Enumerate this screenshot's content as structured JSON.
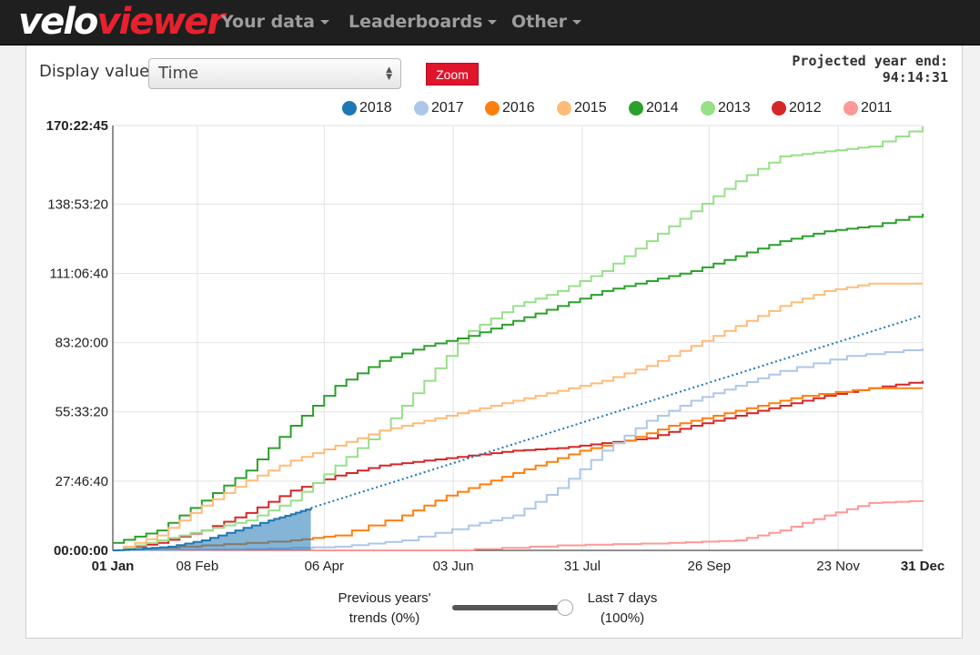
{
  "nav": {
    "logo_part1": "velo",
    "logo_part2": "viewer",
    "items": [
      {
        "label": "Your data"
      },
      {
        "label": "Leaderboards"
      },
      {
        "label": "Other"
      }
    ]
  },
  "controls": {
    "display_label": "Display value:",
    "display_value": "Time",
    "zoom_label": "Zoom",
    "projected_label": "Projected year end:",
    "projected_value": "94:14:31"
  },
  "slider": {
    "left_label_1": "Previous years'",
    "left_label_2": "trends (0%)",
    "right_label_1": "Last 7 days",
    "right_label_2": "(100%)",
    "value": 1.0
  },
  "colors": {
    "2018": "#1f77b4",
    "2017": "#aec7e8",
    "2016": "#ff7f0e",
    "2015": "#ffbb78",
    "2014": "#2ca02c",
    "2013": "#98df8a",
    "2012": "#d62728",
    "2011": "#ff9896"
  },
  "chart_data": {
    "type": "line",
    "y_unit": "hours",
    "ylim": [
      0,
      170.379
    ],
    "xlim": [
      0,
      364
    ],
    "y_ticks": [
      "00:00:00",
      "27:46:40",
      "55:33:20",
      "83:20:00",
      "111:06:40",
      "138:53:20",
      "170:22:45"
    ],
    "y_tick_values": [
      0,
      27.778,
      55.556,
      83.333,
      111.111,
      138.889,
      170.379
    ],
    "x_ticks": [
      "01 Jan",
      "08 Feb",
      "06 Apr",
      "03 Jun",
      "31 Jul",
      "26 Sep",
      "23 Nov",
      "31 Dec"
    ],
    "x_tick_values": [
      0,
      38,
      95,
      153,
      211,
      268,
      326,
      364
    ],
    "grid": true,
    "legend_position": "top",
    "series": [
      {
        "name": "2018",
        "x": [
          0,
          10,
          25,
          40,
          55,
          70,
          80,
          89
        ],
        "y": [
          0,
          0.5,
          1.5,
          4,
          8,
          12,
          14.5,
          17
        ],
        "fill": true
      },
      {
        "name": "2017",
        "x": [
          0,
          60,
          100,
          130,
          160,
          180,
          200,
          220,
          240,
          260,
          280,
          300,
          330,
          364
        ],
        "y": [
          0,
          0.5,
          1.5,
          4,
          10,
          14,
          25,
          40,
          52,
          60,
          66,
          72,
          78,
          81
        ]
      },
      {
        "name": "2016",
        "x": [
          0,
          40,
          80,
          100,
          130,
          150,
          170,
          190,
          210,
          230,
          250,
          270,
          290,
          310,
          340,
          364
        ],
        "y": [
          0,
          2,
          4,
          6,
          14,
          22,
          28,
          34,
          40,
          44,
          50,
          54,
          58,
          62,
          65,
          65
        ]
      },
      {
        "name": "2015",
        "x": [
          0,
          20,
          40,
          60,
          80,
          100,
          120,
          140,
          160,
          180,
          200,
          220,
          240,
          260,
          280,
          300,
          320,
          340,
          364
        ],
        "y": [
          0,
          6,
          18,
          28,
          36,
          42,
          48,
          52,
          56,
          60,
          64,
          68,
          74,
          82,
          90,
          98,
          104,
          107,
          107
        ]
      },
      {
        "name": "2014",
        "x": [
          0,
          20,
          40,
          60,
          80,
          100,
          120,
          140,
          160,
          180,
          200,
          220,
          240,
          260,
          280,
          300,
          320,
          340,
          364
        ],
        "y": [
          3,
          8,
          20,
          32,
          50,
          66,
          76,
          82,
          86,
          92,
          98,
          104,
          108,
          112,
          118,
          124,
          128,
          130,
          135
        ]
      },
      {
        "name": "2013",
        "x": [
          0,
          20,
          40,
          60,
          80,
          100,
          120,
          140,
          160,
          180,
          200,
          220,
          240,
          260,
          280,
          300,
          320,
          340,
          364
        ],
        "y": [
          0,
          4,
          8,
          12,
          20,
          34,
          48,
          68,
          88,
          98,
          104,
          112,
          124,
          136,
          148,
          158,
          160,
          162,
          170
        ]
      },
      {
        "name": "2012",
        "x": [
          0,
          20,
          40,
          60,
          80,
          100,
          120,
          140,
          160,
          180,
          200,
          220,
          240,
          260,
          280,
          300,
          320,
          340,
          364
        ],
        "y": [
          0,
          3,
          8,
          15,
          24,
          30,
          34,
          36,
          38,
          40,
          41,
          43,
          45,
          50,
          54,
          58,
          62,
          65,
          68
        ]
      },
      {
        "name": "2011",
        "x": [
          0,
          150,
          200,
          250,
          280,
          300,
          320,
          340,
          364
        ],
        "y": [
          0,
          0,
          2,
          3,
          4,
          8,
          14,
          19,
          20
        ]
      }
    ],
    "projection": {
      "name": "2018 projection",
      "x": [
        89,
        364
      ],
      "y": [
        17,
        94.24
      ]
    }
  }
}
